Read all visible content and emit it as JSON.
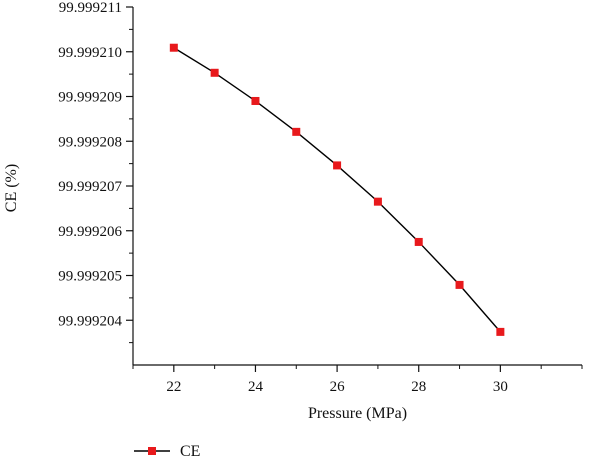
{
  "chart_data": {
    "type": "line",
    "xlabel": "Pressure (MPa)",
    "ylabel": "CE (%)",
    "xlim": [
      21,
      32
    ],
    "ylim": [
      99.999203,
      99.999211
    ],
    "x_ticks": [
      "22",
      "24",
      "26",
      "28",
      "30"
    ],
    "y_ticks": [
      "99.999211",
      "99.999210",
      "99.999209",
      "99.999208",
      "99.999207",
      "99.999206",
      "99.999205",
      "99.999204"
    ],
    "series": [
      {
        "name": "CE",
        "color": "#e8191c",
        "line_color": "#000000",
        "marker": "square",
        "x": [
          22,
          23,
          24,
          25,
          26,
          27,
          28,
          29,
          30
        ],
        "y": [
          99.99921009,
          99.99920953,
          99.9992089,
          99.99920821,
          99.99920746,
          99.99920665,
          99.99920575,
          99.99920479,
          99.99920374
        ]
      }
    ],
    "legend": {
      "position": "bottom-left",
      "items": [
        "CE"
      ]
    },
    "grid": false
  }
}
